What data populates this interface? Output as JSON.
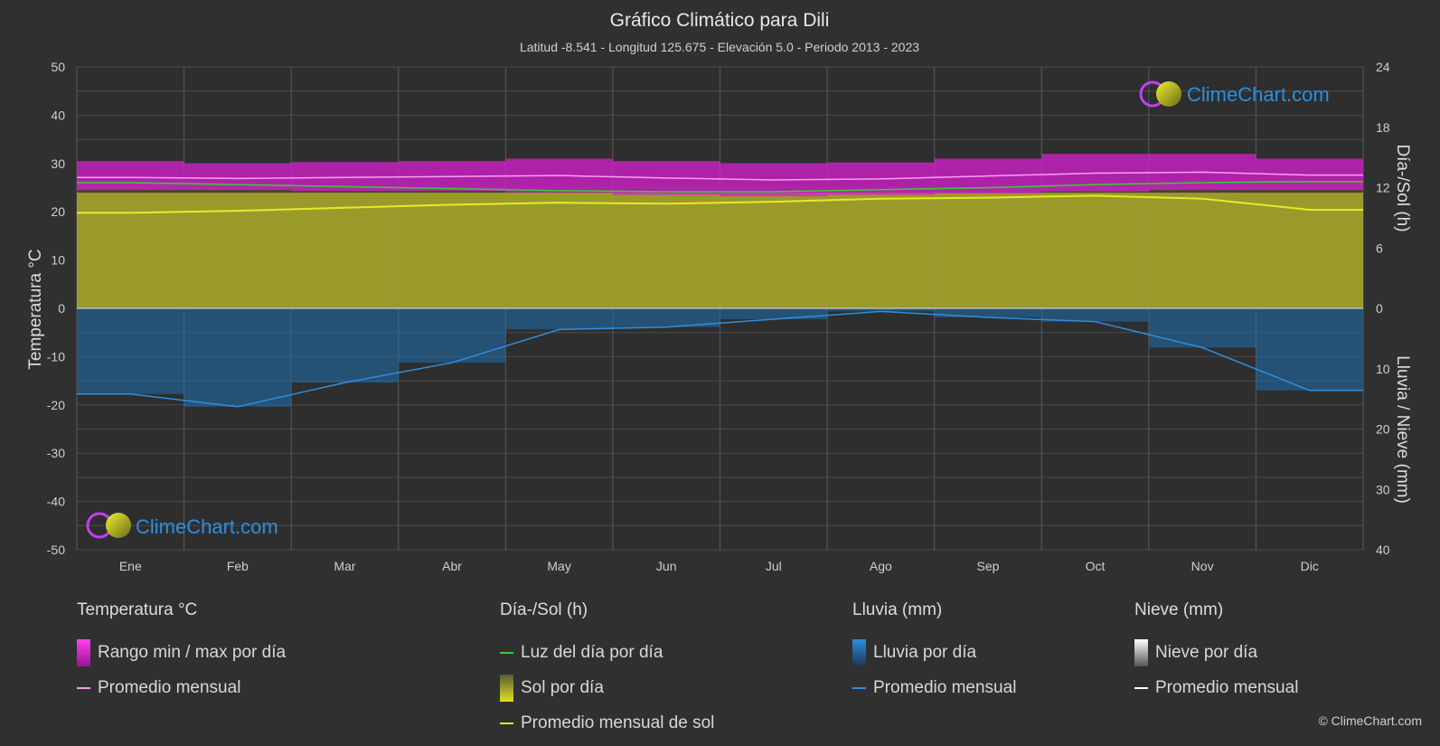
{
  "colors": {
    "background": "#303030",
    "temp_band": "#d81fd0",
    "temp_avg": "#ff9cf5",
    "daylight": "#32d232",
    "sun_fill": "#a6a62a",
    "sun_avg": "#e8e82a",
    "rain_fill": "#1e6fae",
    "rain_avg": "#2e8fe0",
    "snow_avg": "#ffffff",
    "logo_text": "#2a8fe0"
  },
  "logo": {
    "text": "ClimeChart.com"
  },
  "copyright": "© ClimeChart.com",
  "chart_data": {
    "type": "line",
    "title": "Gráfico Climático para Dili",
    "subtitle": "Latitud -8.541 - Longitud 125.675 - Elevación 5.0 - Periodo 2013 - 2023",
    "categories": [
      "Ene",
      "Feb",
      "Mar",
      "Abr",
      "May",
      "Jun",
      "Jul",
      "Ago",
      "Sep",
      "Oct",
      "Nov",
      "Dic"
    ],
    "y_left": {
      "label": "Temperatura °C",
      "range": [
        -50,
        50
      ],
      "ticks": [
        "50",
        "40",
        "30",
        "20",
        "10",
        "0",
        "-10",
        "-20",
        "-30",
        "-40",
        "-50"
      ]
    },
    "y_right_top": {
      "label": "Día-/Sol (h)",
      "range": [
        0,
        24
      ],
      "ticks": [
        "24",
        "18",
        "12",
        "6",
        "0"
      ]
    },
    "y_right_bottom": {
      "label": "Lluvia / Nieve (mm)",
      "range": [
        0,
        40
      ],
      "ticks": [
        "0",
        "10",
        "20",
        "30",
        "40"
      ]
    },
    "grid": true,
    "series": [
      {
        "name": "Rango min / max por día",
        "axis": "temperature",
        "kind": "band",
        "min": [
          24.5,
          24.5,
          24.3,
          24.3,
          24.0,
          23.5,
          23.2,
          23.5,
          23.8,
          24.2,
          24.5,
          24.5
        ],
        "max": [
          30.5,
          30.0,
          30.3,
          30.5,
          31.0,
          30.5,
          30.0,
          30.2,
          31.0,
          32.0,
          32.0,
          31.0
        ]
      },
      {
        "name": "Promedio mensual",
        "axis": "temperature",
        "kind": "line",
        "values": [
          27.1,
          26.9,
          27.1,
          27.3,
          27.5,
          27.0,
          26.6,
          26.8,
          27.4,
          28.0,
          28.2,
          27.6
        ]
      },
      {
        "name": "Luz del día por día",
        "axis": "daylight",
        "kind": "line",
        "values": [
          12.5,
          12.3,
          12.1,
          11.9,
          11.7,
          11.6,
          11.6,
          11.8,
          12.0,
          12.3,
          12.5,
          12.6
        ]
      },
      {
        "name": "Sol por día",
        "axis": "daylight",
        "kind": "area",
        "values": [
          11.5,
          11.5,
          11.5,
          11.5,
          11.5,
          11.5,
          11.5,
          11.5,
          11.5,
          11.5,
          11.5,
          11.5
        ]
      },
      {
        "name": "Promedio mensual de sol",
        "axis": "daylight",
        "kind": "line",
        "values": [
          9.5,
          9.7,
          10.0,
          10.3,
          10.5,
          10.4,
          10.6,
          10.9,
          11.0,
          11.2,
          10.9,
          9.8
        ]
      },
      {
        "name": "Lluvia por día",
        "axis": "precipitation",
        "kind": "bars"
      },
      {
        "name": "Promedio mensual",
        "axis": "precipitation",
        "kind": "line",
        "values": [
          14.2,
          16.3,
          12.3,
          9.0,
          3.5,
          3.1,
          1.8,
          0.5,
          1.5,
          2.2,
          6.5,
          13.6
        ]
      },
      {
        "name": "Nieve por día",
        "axis": "precipitation",
        "kind": "bars"
      },
      {
        "name": "Promedio mensual",
        "axis": "precipitation",
        "kind": "line",
        "values": [
          0,
          0,
          0,
          0,
          0,
          0,
          0,
          0,
          0,
          0,
          0,
          0
        ]
      }
    ]
  },
  "legend": {
    "temperature": {
      "header": "Temperatura °C",
      "items": [
        "Rango min / max por día",
        "Promedio mensual"
      ]
    },
    "sun": {
      "header": "Día-/Sol (h)",
      "items": [
        "Luz del día por día",
        "Sol por día",
        "Promedio mensual de sol"
      ]
    },
    "rain": {
      "header": "Lluvia (mm)",
      "items": [
        "Lluvia por día",
        "Promedio mensual"
      ]
    },
    "snow": {
      "header": "Nieve (mm)",
      "items": [
        "Nieve por día",
        "Promedio mensual"
      ]
    }
  }
}
